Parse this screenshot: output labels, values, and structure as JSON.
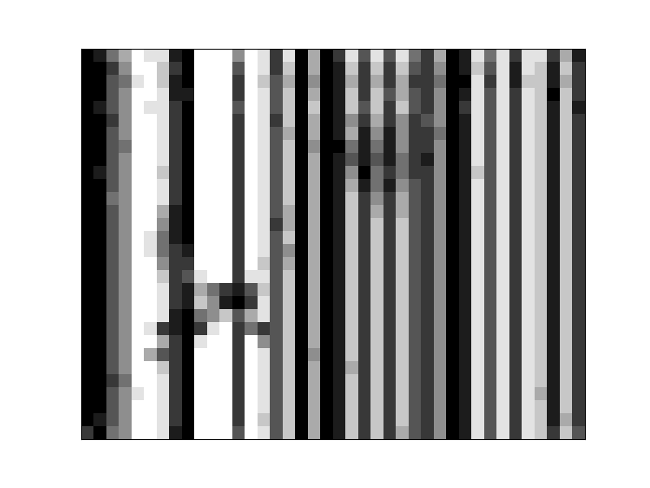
{
  "chart_data": {
    "type": "heatmap",
    "color": "gray",
    "tick_labels": false,
    "zlim": [
      0,
      9
    ],
    "cells": [
      [
        0,
        1,
        4,
        6,
        9,
        8,
        8,
        1,
        0,
        9,
        9,
        9,
        5,
        9,
        8,
        2,
        8,
        0,
        6,
        0,
        2,
        8,
        3,
        8,
        3,
        8,
        4,
        2,
        6,
        0,
        1,
        8,
        4,
        8,
        2,
        8,
        8,
        2,
        6,
        1
      ],
      [
        0,
        0,
        2,
        5,
        9,
        9,
        7,
        2,
        0,
        9,
        9,
        9,
        3,
        9,
        8,
        2,
        7,
        0,
        6,
        0,
        1,
        7,
        2,
        7,
        2,
        7,
        3,
        2,
        5,
        0,
        1,
        7,
        3,
        8,
        1,
        8,
        7,
        1,
        7,
        2
      ],
      [
        0,
        0,
        3,
        4,
        8,
        9,
        7,
        1,
        0,
        9,
        9,
        9,
        2,
        9,
        7,
        3,
        6,
        0,
        5,
        0,
        1,
        6,
        2,
        6,
        2,
        6,
        2,
        2,
        4,
        0,
        0,
        8,
        2,
        8,
        1,
        7,
        7,
        1,
        6,
        2
      ],
      [
        0,
        0,
        3,
        5,
        9,
        9,
        8,
        1,
        1,
        9,
        9,
        9,
        2,
        9,
        8,
        3,
        7,
        0,
        6,
        0,
        1,
        7,
        2,
        7,
        3,
        6,
        3,
        2,
        5,
        0,
        1,
        8,
        3,
        8,
        2,
        8,
        7,
        0,
        7,
        2
      ],
      [
        0,
        1,
        3,
        5,
        9,
        8,
        8,
        2,
        0,
        9,
        9,
        9,
        3,
        9,
        8,
        3,
        7,
        0,
        7,
        0,
        1,
        7,
        3,
        7,
        2,
        7,
        3,
        2,
        5,
        0,
        2,
        8,
        3,
        8,
        2,
        8,
        7,
        1,
        7,
        1
      ],
      [
        0,
        0,
        2,
        5,
        9,
        9,
        8,
        2,
        0,
        9,
        9,
        9,
        2,
        9,
        8,
        2,
        7,
        0,
        6,
        0,
        1,
        5,
        2,
        6,
        2,
        5,
        2,
        3,
        5,
        0,
        1,
        8,
        3,
        8,
        2,
        8,
        7,
        1,
        7,
        2
      ],
      [
        0,
        0,
        3,
        5,
        9,
        9,
        8,
        2,
        0,
        9,
        9,
        9,
        2,
        9,
        8,
        3,
        6,
        0,
        6,
        0,
        1,
        6,
        1,
        5,
        1,
        5,
        2,
        2,
        4,
        0,
        1,
        8,
        3,
        8,
        2,
        8,
        7,
        1,
        7,
        2
      ],
      [
        0,
        0,
        3,
        4,
        9,
        9,
        8,
        2,
        0,
        9,
        9,
        9,
        2,
        9,
        8,
        3,
        7,
        0,
        5,
        0,
        0,
        4,
        1,
        4,
        1,
        5,
        2,
        2,
        5,
        0,
        1,
        8,
        3,
        8,
        2,
        8,
        7,
        1,
        7,
        2
      ],
      [
        0,
        0,
        3,
        5,
        9,
        9,
        8,
        2,
        0,
        9,
        9,
        9,
        2,
        9,
        8,
        3,
        7,
        0,
        6,
        0,
        1,
        3,
        1,
        3,
        1,
        4,
        2,
        1,
        5,
        0,
        1,
        8,
        3,
        8,
        2,
        8,
        7,
        1,
        7,
        2
      ],
      [
        0,
        1,
        3,
        5,
        9,
        9,
        7,
        2,
        0,
        9,
        9,
        9,
        2,
        9,
        8,
        3,
        7,
        0,
        6,
        0,
        1,
        5,
        0,
        4,
        2,
        4,
        2,
        2,
        5,
        0,
        1,
        7,
        3,
        8,
        2,
        8,
        7,
        1,
        7,
        2
      ],
      [
        0,
        0,
        3,
        5,
        9,
        9,
        8,
        2,
        0,
        9,
        9,
        9,
        2,
        9,
        8,
        3,
        7,
        0,
        6,
        0,
        1,
        6,
        1,
        4,
        1,
        5,
        3,
        2,
        5,
        0,
        1,
        8,
        3,
        8,
        2,
        8,
        7,
        1,
        7,
        2
      ],
      [
        0,
        0,
        4,
        5,
        9,
        9,
        8,
        2,
        0,
        9,
        9,
        9,
        2,
        9,
        8,
        3,
        7,
        0,
        6,
        0,
        1,
        7,
        2,
        5,
        2,
        6,
        3,
        2,
        5,
        0,
        1,
        8,
        3,
        8,
        2,
        8,
        7,
        1,
        7,
        2
      ],
      [
        0,
        0,
        3,
        5,
        9,
        9,
        6,
        1,
        0,
        9,
        9,
        9,
        2,
        9,
        8,
        3,
        6,
        0,
        6,
        0,
        1,
        7,
        2,
        6,
        2,
        6,
        3,
        2,
        5,
        0,
        1,
        8,
        3,
        8,
        2,
        8,
        7,
        1,
        7,
        2
      ],
      [
        0,
        0,
        3,
        5,
        9,
        9,
        5,
        1,
        0,
        9,
        9,
        9,
        2,
        9,
        8,
        2,
        6,
        0,
        6,
        0,
        1,
        7,
        2,
        7,
        2,
        7,
        3,
        2,
        5,
        0,
        1,
        8,
        3,
        8,
        2,
        8,
        7,
        1,
        7,
        2
      ],
      [
        0,
        0,
        3,
        5,
        9,
        8,
        4,
        1,
        0,
        9,
        9,
        9,
        2,
        9,
        8,
        3,
        7,
        0,
        6,
        0,
        1,
        7,
        2,
        7,
        2,
        7,
        3,
        2,
        5,
        0,
        1,
        8,
        3,
        8,
        2,
        8,
        7,
        1,
        7,
        2
      ],
      [
        0,
        0,
        3,
        5,
        9,
        8,
        4,
        2,
        1,
        9,
        9,
        9,
        2,
        9,
        8,
        3,
        5,
        0,
        6,
        0,
        1,
        7,
        2,
        7,
        2,
        7,
        3,
        2,
        5,
        0,
        1,
        8,
        3,
        8,
        2,
        8,
        7,
        1,
        7,
        2
      ],
      [
        0,
        0,
        3,
        5,
        9,
        9,
        5,
        2,
        2,
        9,
        9,
        9,
        2,
        9,
        7,
        3,
        6,
        0,
        6,
        0,
        1,
        7,
        2,
        7,
        2,
        7,
        3,
        2,
        5,
        0,
        1,
        8,
        3,
        8,
        2,
        8,
        7,
        1,
        7,
        2
      ],
      [
        0,
        0,
        3,
        5,
        9,
        9,
        7,
        2,
        3,
        8,
        9,
        9,
        2,
        8,
        8,
        3,
        7,
        0,
        6,
        0,
        1,
        7,
        2,
        7,
        2,
        7,
        3,
        2,
        5,
        0,
        1,
        8,
        3,
        8,
        2,
        8,
        7,
        1,
        7,
        2
      ],
      [
        0,
        0,
        3,
        5,
        9,
        9,
        8,
        2,
        1,
        6,
        4,
        2,
        1,
        3,
        7,
        3,
        7,
        0,
        6,
        0,
        1,
        7,
        2,
        7,
        2,
        7,
        3,
        2,
        5,
        0,
        1,
        8,
        3,
        8,
        2,
        8,
        7,
        1,
        7,
        2
      ],
      [
        0,
        0,
        3,
        5,
        9,
        9,
        8,
        2,
        1,
        7,
        5,
        1,
        0,
        2,
        8,
        3,
        7,
        0,
        6,
        0,
        1,
        7,
        2,
        7,
        2,
        7,
        3,
        2,
        5,
        0,
        1,
        8,
        3,
        8,
        2,
        8,
        7,
        1,
        7,
        2
      ],
      [
        0,
        0,
        3,
        5,
        9,
        9,
        8,
        1,
        0,
        4,
        5,
        7,
        3,
        6,
        8,
        3,
        7,
        0,
        6,
        0,
        1,
        7,
        2,
        7,
        2,
        7,
        3,
        2,
        5,
        0,
        1,
        8,
        3,
        8,
        2,
        8,
        7,
        1,
        7,
        2
      ],
      [
        0,
        0,
        3,
        5,
        9,
        8,
        2,
        1,
        0,
        2,
        8,
        9,
        2,
        4,
        2,
        3,
        7,
        0,
        6,
        0,
        1,
        7,
        2,
        7,
        2,
        7,
        3,
        2,
        5,
        0,
        1,
        8,
        3,
        8,
        2,
        8,
        7,
        1,
        7,
        2
      ],
      [
        0,
        0,
        3,
        5,
        9,
        9,
        6,
        2,
        0,
        8,
        9,
        9,
        2,
        9,
        5,
        3,
        7,
        0,
        6,
        0,
        1,
        7,
        2,
        7,
        2,
        7,
        3,
        2,
        5,
        0,
        1,
        8,
        3,
        8,
        2,
        8,
        7,
        1,
        7,
        2
      ],
      [
        0,
        0,
        3,
        5,
        9,
        6,
        3,
        2,
        0,
        9,
        9,
        9,
        2,
        9,
        8,
        3,
        7,
        0,
        5,
        0,
        1,
        7,
        2,
        7,
        2,
        7,
        3,
        2,
        5,
        0,
        1,
        8,
        3,
        8,
        2,
        8,
        7,
        1,
        7,
        2
      ],
      [
        0,
        0,
        3,
        5,
        9,
        9,
        7,
        2,
        0,
        9,
        9,
        9,
        2,
        9,
        8,
        3,
        7,
        0,
        6,
        0,
        1,
        6,
        2,
        7,
        2,
        7,
        3,
        2,
        5,
        0,
        1,
        8,
        3,
        8,
        2,
        8,
        7,
        1,
        7,
        2
      ],
      [
        0,
        0,
        2,
        4,
        9,
        9,
        8,
        2,
        0,
        9,
        9,
        9,
        2,
        9,
        8,
        3,
        7,
        0,
        6,
        0,
        1,
        7,
        2,
        7,
        2,
        7,
        3,
        2,
        5,
        0,
        1,
        8,
        3,
        8,
        2,
        8,
        7,
        1,
        7,
        2
      ],
      [
        0,
        0,
        3,
        5,
        8,
        9,
        8,
        2,
        0,
        9,
        9,
        9,
        2,
        9,
        8,
        3,
        7,
        0,
        6,
        0,
        1,
        7,
        2,
        7,
        2,
        7,
        3,
        2,
        5,
        0,
        1,
        8,
        3,
        8,
        2,
        8,
        6,
        1,
        7,
        2
      ],
      [
        0,
        0,
        3,
        5,
        9,
        9,
        8,
        2,
        0,
        9,
        9,
        9,
        2,
        9,
        8,
        3,
        7,
        0,
        6,
        0,
        1,
        7,
        2,
        7,
        2,
        7,
        3,
        2,
        5,
        0,
        1,
        8,
        3,
        8,
        2,
        8,
        7,
        1,
        7,
        2
      ],
      [
        0,
        1,
        3,
        5,
        9,
        9,
        8,
        2,
        0,
        9,
        9,
        9,
        2,
        9,
        7,
        3,
        7,
        0,
        6,
        0,
        1,
        7,
        2,
        7,
        2,
        7,
        3,
        2,
        5,
        0,
        1,
        8,
        3,
        8,
        2,
        8,
        7,
        1,
        6,
        2
      ],
      [
        2,
        0,
        4,
        5,
        9,
        9,
        8,
        1,
        0,
        9,
        9,
        9,
        3,
        9,
        8,
        3,
        7,
        0,
        6,
        0,
        1,
        7,
        2,
        7,
        2,
        6,
        3,
        2,
        5,
        0,
        1,
        8,
        3,
        8,
        2,
        8,
        7,
        2,
        7,
        3
      ]
    ]
  }
}
